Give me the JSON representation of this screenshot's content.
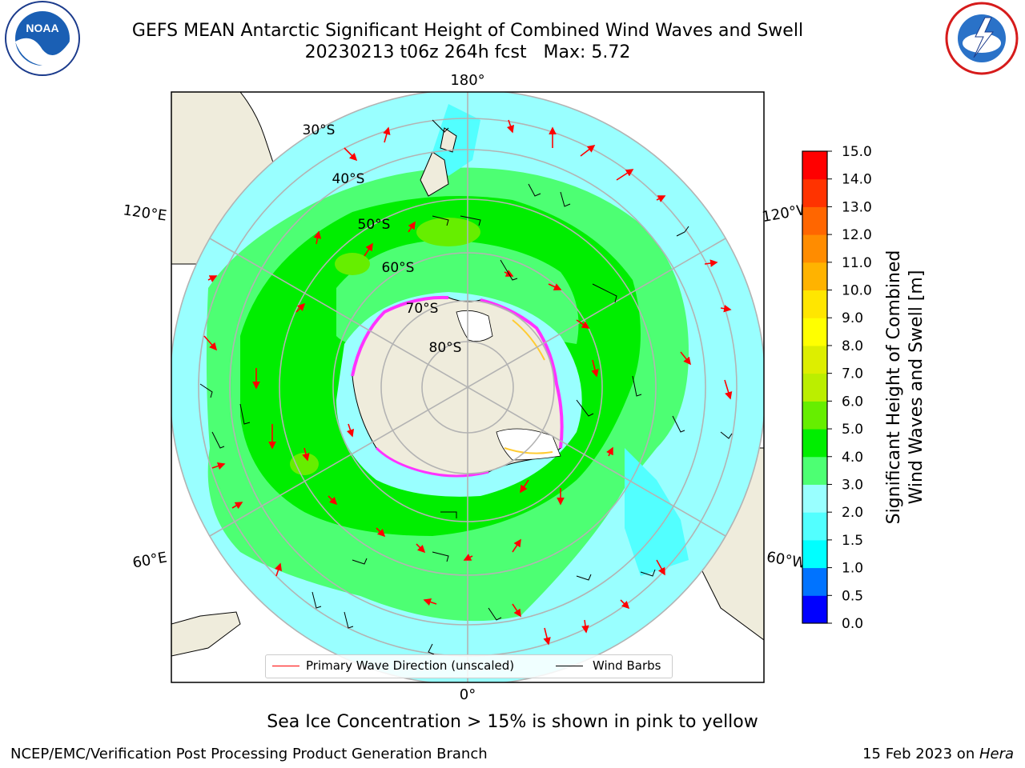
{
  "title": {
    "line1": "GEFS MEAN Antarctic Significant Height of Combined Wind Waves and Swell",
    "line2": "20230213 t06z 264h fcst   Max: 5.72"
  },
  "logos": {
    "left": {
      "text": "NOAA",
      "ring_text": "NATIONAL OCEANIC AND ATMOSPHERIC ADMINISTRATION · U.S. DEPARTMENT OF COMMERCE"
    },
    "right": {
      "ring_text": "NATIONAL WEATHER SERVICE"
    }
  },
  "map": {
    "lon_labels": {
      "top": "180°",
      "bottom": "0°",
      "upper_left": "120°E",
      "upper_right": "120°W",
      "lower_left": "60°E",
      "lower_right": "60°W"
    },
    "lat_labels": [
      "30°S",
      "40°S",
      "50°S",
      "60°S",
      "70°S",
      "80°S"
    ]
  },
  "colorbar": {
    "title_line1": "Significant Height of Combined",
    "title_line2": "Wind Waves and Swell [m]",
    "ticks": [
      "0.0",
      "0.5",
      "1.0",
      "1.5",
      "2.0",
      "3.0",
      "4.0",
      "5.0",
      "6.0",
      "7.0",
      "8.0",
      "9.0",
      "10.0",
      "11.0",
      "12.0",
      "13.0",
      "14.0",
      "15.0"
    ],
    "colors": [
      "#0000ff",
      "#0073ff",
      "#00ffff",
      "#52ffff",
      "#99ffff",
      "#4dff73",
      "#00ee00",
      "#66ee00",
      "#bbee00",
      "#ddee00",
      "#ffff00",
      "#ffe600",
      "#ffb300",
      "#ff8c00",
      "#ff6600",
      "#ff3300",
      "#ff0000"
    ]
  },
  "legend": {
    "primary_label": "Primary Wave Direction (unscaled)",
    "primary_color": "#ff0000",
    "wind_label": "Wind Barbs",
    "wind_color": "#000000"
  },
  "ice_note": "Sea Ice Concentration > 15% is shown in pink to yellow",
  "footer": {
    "left": "NCEP/EMC/Verification Post Processing Product Generation Branch",
    "right_prefix": "15 Feb 2023 on ",
    "right_italic": "Hera"
  }
}
